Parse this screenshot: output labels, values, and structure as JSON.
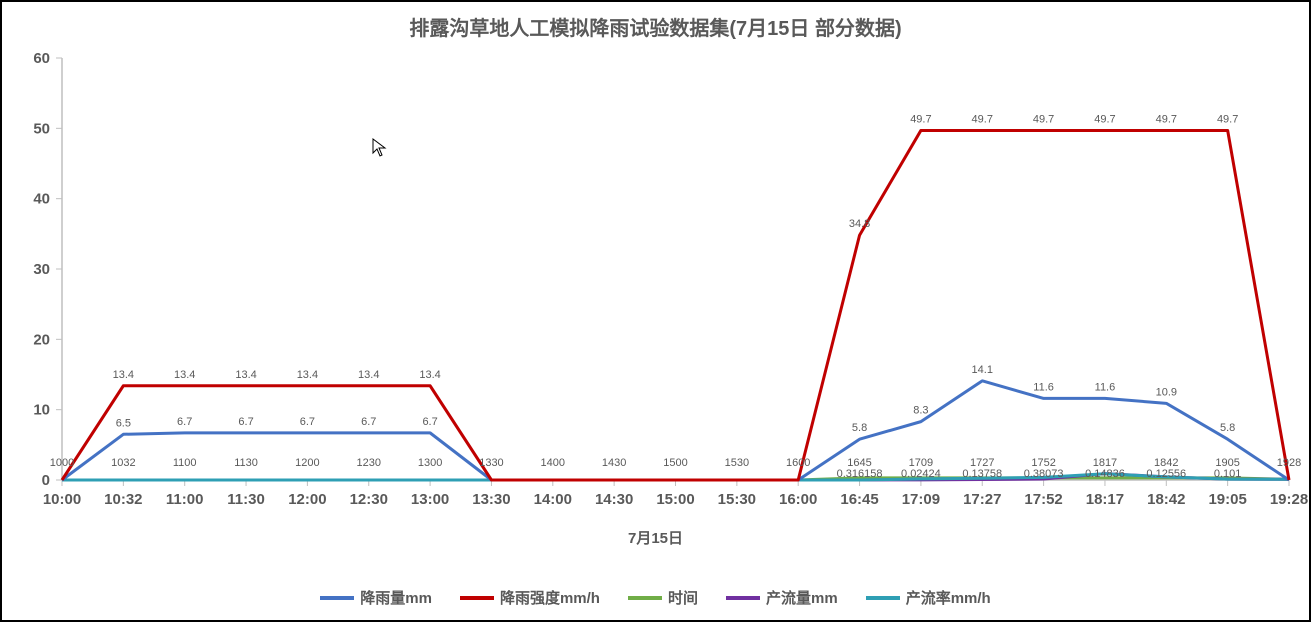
{
  "chart": {
    "type": "line",
    "title": "排露沟草地人工模拟降雨试验数据集(7月15日 部分数据)",
    "title_fontsize": 20,
    "title_color": "#595959",
    "x_axis_title": "7月15日",
    "categories": [
      "10:00",
      "10:32",
      "11:00",
      "11:30",
      "12:00",
      "12:30",
      "13:00",
      "13:30",
      "14:00",
      "14:30",
      "15:00",
      "15:30",
      "16:00",
      "16:45",
      "17:09",
      "17:27",
      "17:52",
      "18:17",
      "18:42",
      "19:05",
      "19:28"
    ],
    "ylim": [
      0,
      60
    ],
    "ytick_step": 10,
    "yticks": [
      0,
      10,
      20,
      30,
      40,
      50,
      60
    ],
    "axis_color": "#bfbfbf",
    "axis_label_color": "#595959",
    "axis_label_fontsize": 15,
    "axis_label_weight": "bold",
    "data_label_fontsize": 11,
    "data_label_color": "#595959",
    "background_color": "#ffffff",
    "border_color": "#000000",
    "line_width": 3,
    "show_markers": false,
    "show_grid": false,
    "series": [
      {
        "name": "降雨量mm",
        "color": "#4472c4",
        "values": [
          0,
          6.5,
          6.7,
          6.7,
          6.7,
          6.7,
          6.7,
          0,
          0,
          0,
          0,
          0,
          0,
          5.8,
          8.3,
          14.1,
          11.6,
          11.6,
          10.9,
          5.8,
          0
        ],
        "show_labels": true
      },
      {
        "name": "降雨强度mm/h",
        "color": "#c00000",
        "values": [
          0,
          13.4,
          13.4,
          13.4,
          13.4,
          13.4,
          13.4,
          0,
          0,
          0,
          0,
          0,
          0,
          34.8,
          49.7,
          49.7,
          49.7,
          49.7,
          49.7,
          49.7,
          0
        ],
        "show_labels": true
      },
      {
        "name": "时间",
        "color": "#70ad47",
        "values": [
          0,
          0,
          0,
          0,
          0,
          0,
          0,
          0,
          0,
          0,
          0,
          0,
          0,
          0.3,
          0.3,
          0.3,
          0.3,
          0.3,
          0.3,
          0.3,
          0.1
        ],
        "show_labels": false
      },
      {
        "name": "产流量mm",
        "color": "#7030a0",
        "values": [
          0,
          0,
          0,
          0,
          0,
          0,
          0,
          0,
          0,
          0,
          0,
          0,
          0,
          0,
          0.02,
          0.07,
          0.14,
          0.9,
          0.45,
          0.13,
          0.1
        ],
        "show_labels": false
      },
      {
        "name": "产流率mm/h",
        "color": "#2e9fb4",
        "values": [
          0,
          0,
          0,
          0,
          0,
          0,
          0,
          0,
          0,
          0,
          0,
          0,
          0,
          0,
          0.16,
          0.24,
          0.38,
          0.89,
          0.44,
          0.12,
          0.1
        ],
        "show_labels": false
      }
    ],
    "combined_low_labels": {
      "x_labels": [
        "10:00",
        "10:32",
        "11:00",
        "11:30",
        "12:00",
        "12:30",
        "13:00",
        "13:30",
        "14:00",
        "14:30",
        "15:00",
        "15:30",
        "16:00",
        "16:45",
        "17:09",
        "17:27",
        "17:52",
        "18:17",
        "18:42",
        "19:05",
        "19:28"
      ],
      "detail_labels": [
        "",
        "",
        "",
        "",
        "",
        "",
        "",
        "",
        "",
        "",
        "",
        "",
        "",
        "0.316158",
        "0.02424",
        "0.13758",
        "0.38073",
        "0.14836",
        "0.12556",
        "0.101",
        ""
      ]
    },
    "legend": {
      "position": "bottom",
      "items": [
        {
          "label": "降雨量mm",
          "color": "#4472c4"
        },
        {
          "label": "降雨强度mm/h",
          "color": "#c00000"
        },
        {
          "label": "时间",
          "color": "#70ad47"
        },
        {
          "label": "产流量mm",
          "color": "#7030a0"
        },
        {
          "label": "产流率mm/h",
          "color": "#2e9fb4"
        }
      ]
    }
  },
  "cursor": {
    "visible": true,
    "glyph": "↖"
  }
}
